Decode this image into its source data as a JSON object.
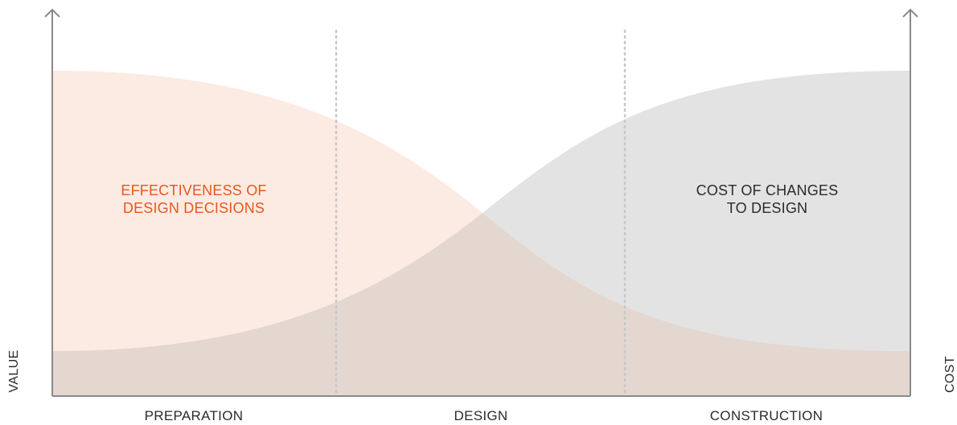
{
  "axes": {
    "left_label": "VALUE",
    "right_label": "COST"
  },
  "phases": [
    "PREPARATION",
    "DESIGN",
    "CONSTRUCTION"
  ],
  "curves": {
    "effectiveness": {
      "label": "EFFECTIVENESS OF\nDESIGN DECISIONS",
      "color": "#e8581c",
      "fill": "#fcebe2"
    },
    "cost": {
      "label": "COST OF CHANGES\nTO DESIGN",
      "color": "#2b2b2b",
      "fill": "#e3e3e3"
    },
    "overlap_fill": "#e3d7d0"
  },
  "colors": {
    "axis": "#8a8a8a",
    "divider": "#c8c8c8"
  }
}
